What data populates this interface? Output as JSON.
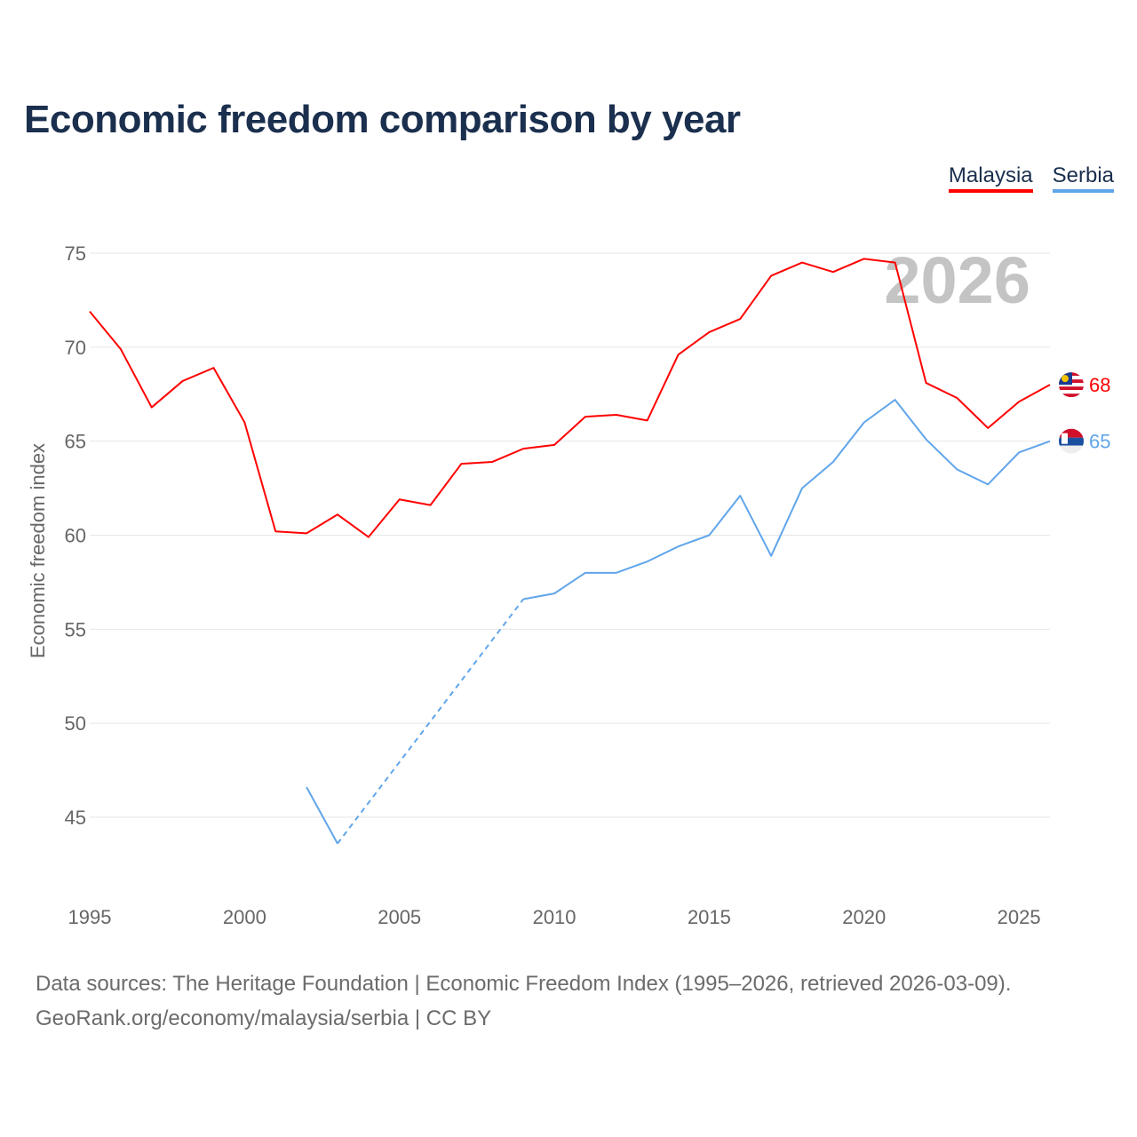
{
  "title": "Economic freedom comparison by year",
  "legend": [
    "Malaysia",
    "Serbia"
  ],
  "footer": {
    "line1": "Data sources: The Heritage Foundation | Economic Freedom Index (1995–2026, retrieved 2026-03-09).",
    "line2": "GeoRank.org/economy/malaysia/serbia | CC BY"
  },
  "chart_data": {
    "type": "line",
    "title": "Economic freedom comparison by year",
    "xlabel": "",
    "ylabel": "Economic freedom index",
    "year_watermark": "2026",
    "xlim": [
      1995,
      2026
    ],
    "ylim": [
      42,
      75
    ],
    "x_ticks": [
      1995,
      2000,
      2005,
      2010,
      2015,
      2020,
      2025
    ],
    "y_ticks": [
      45,
      50,
      55,
      60,
      65,
      70,
      75
    ],
    "grid": true,
    "legend_position": "top-right",
    "x": [
      1995,
      1996,
      1997,
      1998,
      1999,
      2000,
      2001,
      2002,
      2003,
      2004,
      2005,
      2006,
      2007,
      2008,
      2009,
      2010,
      2011,
      2012,
      2013,
      2014,
      2015,
      2016,
      2017,
      2018,
      2019,
      2020,
      2021,
      2022,
      2023,
      2024,
      2025,
      2026
    ],
    "series": [
      {
        "name": "Malaysia",
        "color": "#ff0000",
        "end_label": "68",
        "flag": "malaysia-flag",
        "values": [
          71.9,
          69.9,
          66.8,
          68.2,
          68.9,
          66.0,
          60.2,
          60.1,
          61.1,
          59.9,
          61.9,
          61.6,
          63.8,
          63.9,
          64.6,
          64.8,
          66.3,
          66.4,
          66.1,
          69.6,
          70.8,
          71.5,
          73.8,
          74.5,
          74.0,
          74.7,
          74.5,
          68.1,
          67.3,
          65.7,
          67.1,
          68.0
        ]
      },
      {
        "name": "Serbia",
        "color": "#60a5ea",
        "end_label": "65",
        "flag": "serbia-flag",
        "values": [
          null,
          null,
          null,
          null,
          null,
          null,
          null,
          46.6,
          43.6,
          null,
          null,
          null,
          null,
          null,
          56.6,
          56.9,
          58.0,
          58.0,
          58.6,
          59.4,
          60.0,
          62.1,
          58.9,
          62.5,
          63.9,
          66.0,
          67.2,
          65.1,
          63.5,
          62.7,
          64.4,
          65.0
        ]
      }
    ]
  }
}
